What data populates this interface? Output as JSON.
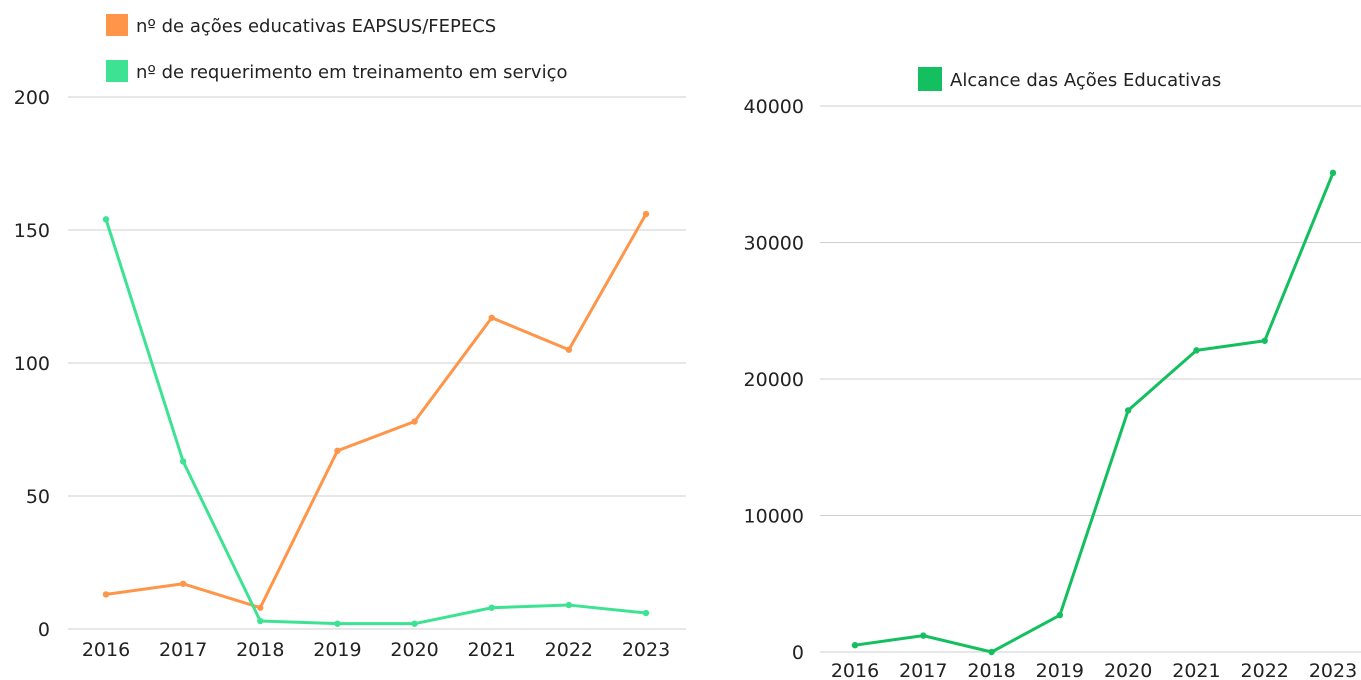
{
  "chart_data": [
    {
      "type": "line",
      "categories": [
        "2016",
        "2017",
        "2018",
        "2019",
        "2020",
        "2021",
        "2022",
        "2023"
      ],
      "ylim": [
        0,
        200
      ],
      "yticks": [
        "0",
        "50",
        "100",
        "150",
        "200"
      ],
      "grid": true,
      "legend_position": "top-left",
      "series": [
        {
          "name": "nº de ações educativas EAPSUS/FEPECS",
          "color": "#FF9549",
          "values": [
            13,
            17,
            8,
            67,
            78,
            117,
            105,
            156
          ]
        },
        {
          "name": "nº de requerimento em treinamento em serviço",
          "color": "#3DE393",
          "values": [
            154,
            63,
            3,
            2,
            2,
            8,
            9,
            6
          ]
        }
      ]
    },
    {
      "type": "line",
      "categories": [
        "2016",
        "2017",
        "2018",
        "2019",
        "2020",
        "2021",
        "2022",
        "2023"
      ],
      "ylim": [
        0,
        40000
      ],
      "yticks": [
        "0",
        "10000",
        "20000",
        "30000",
        "40000"
      ],
      "grid": true,
      "legend_position": "top",
      "series": [
        {
          "name": "Alcance das Ações Educativas",
          "color": "#13BF5E",
          "values": [
            500,
            1200,
            0,
            2700,
            17700,
            22100,
            22800,
            35100
          ]
        }
      ]
    }
  ]
}
